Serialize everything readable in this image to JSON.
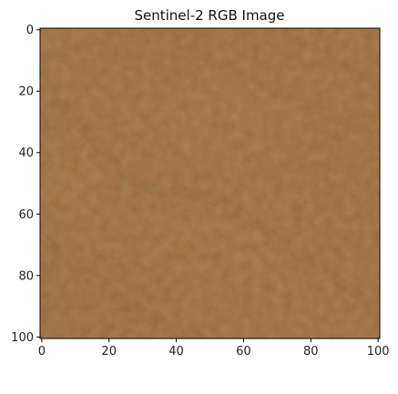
{
  "chart_data": {
    "type": "heatmap",
    "title": "Sentinel-2 RGB Image",
    "xlabel": "",
    "ylabel": "",
    "xlim": [
      0,
      100
    ],
    "ylim": [
      100,
      0
    ],
    "x_ticks": [
      0,
      20,
      40,
      60,
      80,
      100
    ],
    "y_ticks": [
      0,
      20,
      40,
      60,
      80,
      100
    ],
    "grid": false,
    "legend": "none",
    "image": {
      "width": 101,
      "height": 101,
      "content": "RGB satellite image of brown-orange terrain with dark olive diagonal channels running from upper-left to lower-right",
      "base_color": "#9c6a3a",
      "dark_color": "#4a4222",
      "light_color": "#c48a58",
      "orange_color": "#b86a3a"
    }
  }
}
